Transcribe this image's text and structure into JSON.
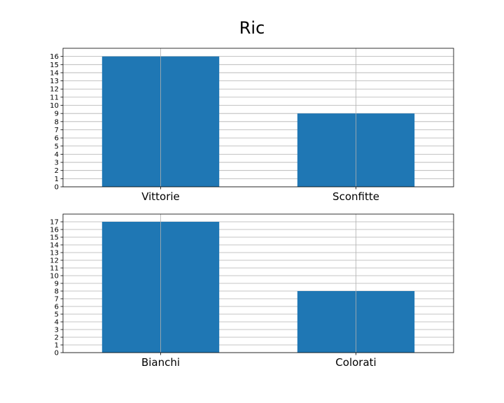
{
  "figure": {
    "title": "Ric"
  },
  "chart_data": [
    {
      "type": "bar",
      "categories": [
        "Vittorie",
        "Sconfitte"
      ],
      "values": [
        16,
        9
      ],
      "ylim": [
        0,
        17
      ],
      "yticks": [
        0,
        1,
        2,
        3,
        4,
        5,
        6,
        7,
        8,
        9,
        10,
        11,
        12,
        13,
        14,
        15,
        16
      ],
      "grid": true,
      "bar_color": "#1f77b4"
    },
    {
      "type": "bar",
      "categories": [
        "Bianchi",
        "Colorati"
      ],
      "values": [
        17,
        8
      ],
      "ylim": [
        0,
        18
      ],
      "yticks": [
        0,
        1,
        2,
        3,
        4,
        5,
        6,
        7,
        8,
        9,
        10,
        11,
        12,
        13,
        14,
        15,
        16,
        17
      ],
      "grid": true,
      "bar_color": "#1f77b4"
    }
  ]
}
